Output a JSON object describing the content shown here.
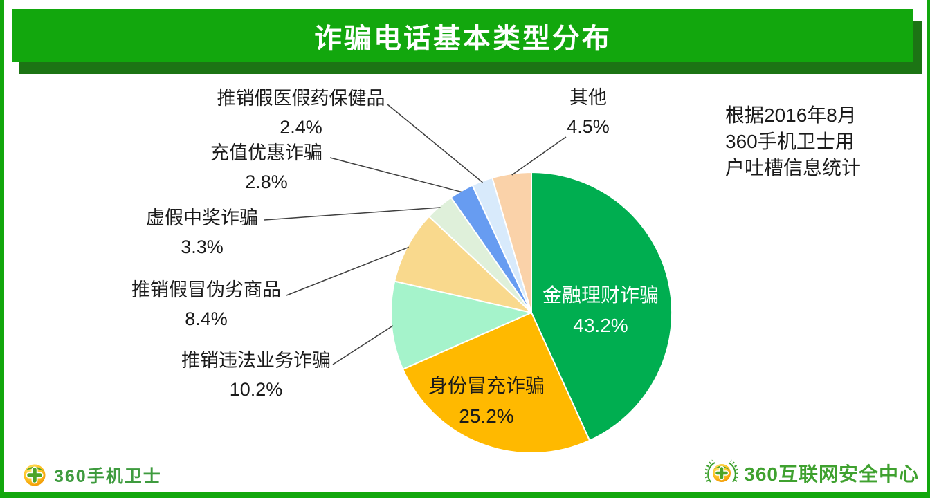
{
  "page": {
    "title": "诈骗电话基本类型分布",
    "note": "根据2016年8月\n360手机卫士用\n户吐槽信息统计",
    "footer_left_brand": "360手机卫士",
    "footer_right_brand": "360互联网安全中心"
  },
  "colors": {
    "banner_green": "#12A70D",
    "banner_shadow_green": "#1C7414",
    "frame_green": "#12A70D",
    "leader_line": "#3F3F3F",
    "footer_left_text": "#3E9B3E",
    "footer_right_text": "#3FA12F"
  },
  "icons": {
    "footer_left_logo": "360-ball-cross-logo-icon",
    "footer_right_logo": "360-ball-wreath-logo-icon"
  },
  "chart_data": {
    "type": "pie",
    "title": "诈骗电话基本类型分布",
    "legend_position": "none",
    "label_format": "name + percent",
    "start_angle_deg": 0,
    "direction": "clockwise",
    "slices": [
      {
        "label": "金融理财诈骗",
        "value": 43.2,
        "color": "#00AE50",
        "label_position": "inside",
        "label_color": "#FFFFFF"
      },
      {
        "label": "身份冒充诈骗",
        "value": 25.2,
        "color": "#FFB900",
        "label_position": "inside",
        "label_color": "#1A1A1A"
      },
      {
        "label": "推销违法业务诈骗",
        "value": 10.2,
        "color": "#A5F3CB",
        "label_position": "outside",
        "label_color": "#1A1A1A"
      },
      {
        "label": "推销假冒伪劣商品",
        "value": 8.4,
        "color": "#F9D98D",
        "label_position": "outside",
        "label_color": "#1A1A1A"
      },
      {
        "label": "虚假中奖诈骗",
        "value": 3.3,
        "color": "#DFF0DA",
        "label_position": "outside",
        "label_color": "#1A1A1A"
      },
      {
        "label": "充值优惠诈骗",
        "value": 2.8,
        "color": "#679CF1",
        "label_position": "outside",
        "label_color": "#1A1A1A"
      },
      {
        "label": "推销假医假药保健品",
        "value": 2.4,
        "color": "#D8EAFB",
        "label_position": "outside",
        "label_color": "#1A1A1A"
      },
      {
        "label": "其他",
        "value": 4.5,
        "color": "#FAD2A9",
        "label_position": "outside",
        "label_color": "#1A1A1A"
      }
    ]
  }
}
